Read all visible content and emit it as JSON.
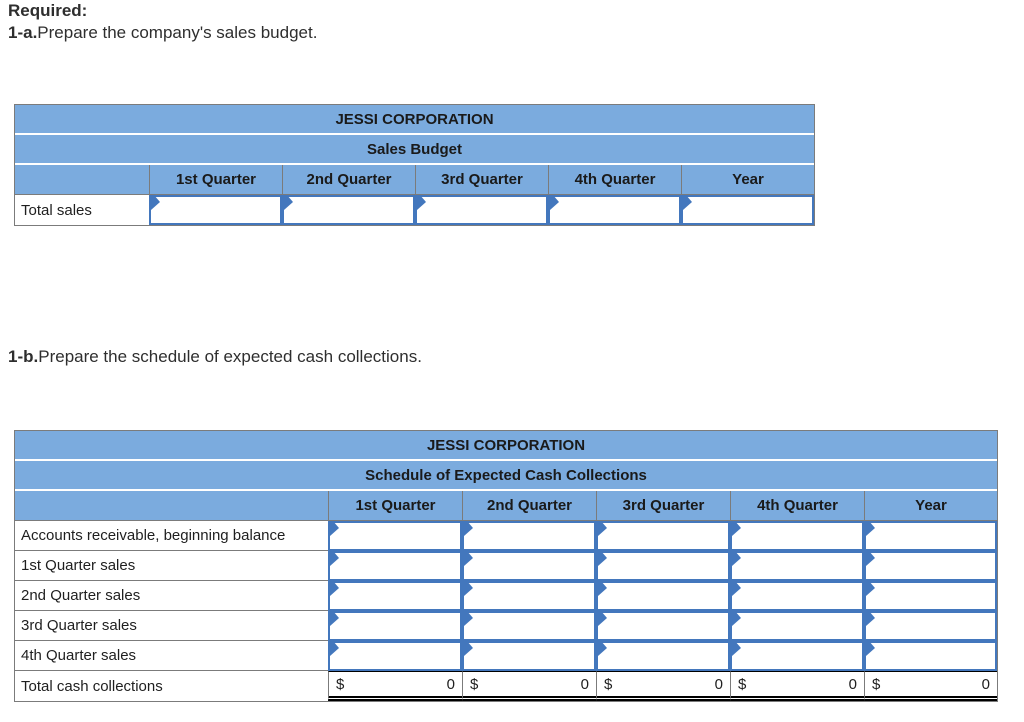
{
  "instructions": {
    "required_label": "Required:",
    "task_1a_prefix": "1-a.",
    "task_1a_text": "Prepare the company's sales budget.",
    "task_1b_prefix": "1-b.",
    "task_1b_text": "Prepare the schedule of expected cash collections."
  },
  "colors": {
    "header_blue": "#7BABDE",
    "input_border_blue": "#4377BD",
    "grid_gray": "#7b7b7b"
  },
  "sales_budget_table": {
    "title": "JESSI CORPORATION",
    "subtitle": "Sales Budget",
    "columns": [
      "1st Quarter",
      "2nd Quarter",
      "3rd Quarter",
      "4th Quarter",
      "Year"
    ],
    "row_label": "Total sales"
  },
  "cash_collections_table": {
    "title": "JESSI CORPORATION",
    "subtitle": "Schedule of Expected Cash Collections",
    "columns": [
      "1st Quarter",
      "2nd Quarter",
      "3rd Quarter",
      "4th Quarter",
      "Year"
    ],
    "input_rows": [
      "Accounts receivable, beginning balance",
      "1st Quarter sales",
      "2nd Quarter sales",
      "3rd Quarter sales",
      "4th Quarter sales"
    ],
    "total_row": {
      "label": "Total cash collections",
      "currency_symbol": "$",
      "values": [
        "0",
        "0",
        "0",
        "0",
        "0"
      ]
    }
  }
}
